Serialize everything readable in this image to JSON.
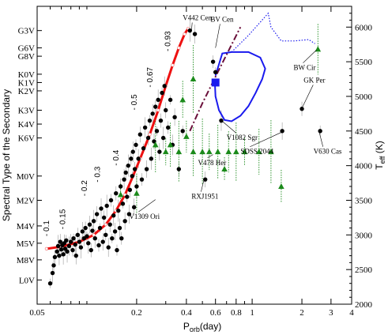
{
  "chart_data": {
    "type": "scatter",
    "x_axis": {
      "label": "P",
      "label_sub": "orb",
      "label_tail": "(day)",
      "scale": "log",
      "range": [
        0.05,
        4
      ],
      "ticks": [
        {
          "v": 0.05,
          "t": "0.05"
        },
        {
          "v": 0.2,
          "t": "0.2"
        },
        {
          "v": 0.4,
          "t": "0.4"
        },
        {
          "v": 0.6,
          "t": "0.6"
        },
        {
          "v": 0.8,
          "t": "0.8"
        },
        {
          "v": 1,
          "t": "1"
        },
        {
          "v": 2,
          "t": "2"
        },
        {
          "v": 3,
          "t": "3"
        },
        {
          "v": 4,
          "t": "4"
        }
      ],
      "minor": [
        0.06,
        0.07,
        0.08,
        0.09,
        0.1,
        0.3,
        0.5,
        0.7,
        0.9
      ]
    },
    "y_left": {
      "label": "Spectral Type of  the Secondary",
      "ticks": [
        {
          "v": 5950,
          "t": "G3V"
        },
        {
          "v": 5700,
          "t": "G6V"
        },
        {
          "v": 5580,
          "t": "G8V"
        },
        {
          "v": 5320,
          "t": "K0V"
        },
        {
          "v": 5200,
          "t": "K1V"
        },
        {
          "v": 5080,
          "t": "K2V"
        },
        {
          "v": 4800,
          "t": "K3V"
        },
        {
          "v": 4600,
          "t": "K4V"
        },
        {
          "v": 4400,
          "t": "K6V"
        },
        {
          "v": 3850,
          "t": "M0V"
        },
        {
          "v": 3500,
          "t": "M2V"
        },
        {
          "v": 3130,
          "t": "M4V"
        },
        {
          "v": 2880,
          "t": "M5V"
        },
        {
          "v": 2640,
          "t": "M8V"
        },
        {
          "v": 2350,
          "t": "L0V"
        }
      ]
    },
    "y_right": {
      "label": "T",
      "label_sub": "eff",
      "label_tail": " (K)",
      "range": [
        2000,
        6300
      ],
      "ticks": [
        2000,
        2500,
        3000,
        3500,
        4000,
        4500,
        5000,
        5500,
        6000
      ]
    },
    "series": [
      {
        "name": "",
        "kind": "points",
        "color": "#000000",
        "points": [
          [
            0.06,
            2300
          ],
          [
            0.062,
            2450
          ],
          [
            0.063,
            2560
          ],
          [
            0.064,
            2680
          ],
          [
            0.066,
            2760
          ],
          [
            0.067,
            2840
          ],
          [
            0.068,
            2700
          ],
          [
            0.069,
            2900
          ],
          [
            0.07,
            2790
          ],
          [
            0.071,
            2850
          ],
          [
            0.072,
            2720
          ],
          [
            0.073,
            2880
          ],
          [
            0.074,
            2800
          ],
          [
            0.075,
            2920
          ],
          [
            0.076,
            2760
          ],
          [
            0.078,
            2840
          ],
          [
            0.08,
            2900
          ],
          [
            0.082,
            2780
          ],
          [
            0.083,
            2950
          ],
          [
            0.085,
            2860
          ],
          [
            0.086,
            2700
          ],
          [
            0.088,
            3000
          ],
          [
            0.09,
            2900
          ],
          [
            0.092,
            2820
          ],
          [
            0.094,
            3050
          ],
          [
            0.096,
            2950
          ],
          [
            0.098,
            3100
          ],
          [
            0.1,
            2980
          ],
          [
            0.102,
            2880
          ],
          [
            0.104,
            3150
          ],
          [
            0.106,
            2780
          ],
          [
            0.108,
            3060
          ],
          [
            0.11,
            3200
          ],
          [
            0.112,
            2950
          ],
          [
            0.115,
            3300
          ],
          [
            0.118,
            2850
          ],
          [
            0.12,
            3100
          ],
          [
            0.122,
            3380
          ],
          [
            0.125,
            2900
          ],
          [
            0.127,
            3250
          ],
          [
            0.13,
            3000
          ],
          [
            0.132,
            3420
          ],
          [
            0.135,
            2820
          ],
          [
            0.138,
            3150
          ],
          [
            0.14,
            3500
          ],
          [
            0.142,
            2950
          ],
          [
            0.145,
            3280
          ],
          [
            0.148,
            3050
          ],
          [
            0.15,
            3600
          ],
          [
            0.152,
            2780
          ],
          [
            0.155,
            3350
          ],
          [
            0.158,
            3100
          ],
          [
            0.16,
            3700
          ],
          [
            0.162,
            2950
          ],
          [
            0.165,
            3450
          ],
          [
            0.168,
            3800
          ],
          [
            0.17,
            3200
          ],
          [
            0.172,
            3900
          ],
          [
            0.175,
            3550
          ],
          [
            0.178,
            4000
          ],
          [
            0.18,
            3300
          ],
          [
            0.182,
            3650
          ],
          [
            0.185,
            4100
          ],
          [
            0.188,
            3850
          ],
          [
            0.19,
            4200
          ],
          [
            0.193,
            3400
          ],
          [
            0.195,
            3950
          ],
          [
            0.198,
            4300
          ],
          [
            0.2,
            3700
          ],
          [
            0.205,
            4100
          ],
          [
            0.21,
            4450
          ],
          [
            0.215,
            3800
          ],
          [
            0.22,
            4250
          ],
          [
            0.225,
            4550
          ],
          [
            0.23,
            3950
          ],
          [
            0.235,
            4400
          ],
          [
            0.24,
            4650
          ],
          [
            0.245,
            4100
          ],
          [
            0.25,
            4750
          ],
          [
            0.255,
            4350
          ],
          [
            0.26,
            4850
          ],
          [
            0.265,
            4500
          ],
          [
            0.27,
            4950
          ],
          [
            0.275,
            4200
          ],
          [
            0.28,
            4650
          ],
          [
            0.285,
            5050
          ],
          [
            0.29,
            4400
          ],
          [
            0.295,
            5150
          ],
          [
            0.3,
            4800
          ],
          [
            0.31,
            4550
          ],
          [
            0.32,
            4950
          ],
          [
            0.33,
            4300
          ],
          [
            0.34,
            4700
          ],
          [
            0.36,
            3950
          ],
          [
            0.38,
            4500
          ],
          [
            0.42,
            5950
          ],
          [
            0.45,
            5900
          ],
          [
            0.52,
            3800
          ],
          [
            0.58,
            5500
          ],
          [
            0.6,
            5350
          ],
          [
            0.65,
            4650
          ],
          [
            1.52,
            4500
          ],
          [
            2.0,
            4820
          ],
          [
            2.58,
            4500
          ]
        ]
      },
      {
        "name": "",
        "kind": "triangles",
        "color": "#1a8a1a",
        "points": [
          [
            0.16,
            3580
          ],
          [
            0.2,
            3600
          ],
          [
            0.26,
            4300
          ],
          [
            0.3,
            4200
          ],
          [
            0.32,
            4300
          ],
          [
            0.36,
            4200
          ],
          [
            0.4,
            4420
          ],
          [
            0.44,
            4200
          ],
          [
            0.5,
            4200
          ],
          [
            0.55,
            4200
          ],
          [
            0.62,
            4200
          ],
          [
            0.68,
            3950
          ],
          [
            0.72,
            4200
          ],
          [
            0.8,
            4200
          ],
          [
            0.9,
            4200
          ],
          [
            1.1,
            4200
          ],
          [
            1.3,
            4200
          ],
          [
            1.5,
            3700
          ],
          [
            2.5,
            5680
          ],
          [
            0.44,
            5250
          ],
          [
            0.38,
            4950
          ]
        ]
      },
      {
        "name": "",
        "kind": "red-track",
        "color": "#ee1111",
        "points": [
          [
            0.057,
            2800
          ],
          [
            0.07,
            2830
          ],
          [
            0.09,
            2900
          ],
          [
            0.11,
            3000
          ],
          [
            0.13,
            3150
          ],
          [
            0.15,
            3350
          ],
          [
            0.17,
            3580
          ],
          [
            0.19,
            3850
          ],
          [
            0.21,
            4100
          ],
          [
            0.24,
            4450
          ],
          [
            0.27,
            4800
          ],
          [
            0.3,
            5150
          ],
          [
            0.33,
            5450
          ],
          [
            0.36,
            5700
          ],
          [
            0.39,
            5900
          ],
          [
            0.41,
            5980
          ]
        ]
      },
      {
        "name": "",
        "kind": "blue-track",
        "color": "#1a1aee",
        "points": [
          [
            0.595,
            5200
          ],
          [
            0.6,
            5000
          ],
          [
            0.63,
            4800
          ],
          [
            0.68,
            4660
          ],
          [
            0.75,
            4640
          ],
          [
            0.85,
            4720
          ],
          [
            0.95,
            4860
          ],
          [
            1.05,
            5050
          ],
          [
            1.15,
            5250
          ],
          [
            1.2,
            5400
          ],
          [
            1.12,
            5560
          ],
          [
            0.95,
            5640
          ],
          [
            0.75,
            5640
          ],
          [
            0.66,
            5620
          ],
          [
            0.6,
            5300
          ]
        ]
      },
      {
        "name": "",
        "kind": "blue-dotted",
        "color": "#1a1aee",
        "points": [
          [
            0.75,
            5640
          ],
          [
            0.95,
            5880
          ],
          [
            1.1,
            6050
          ],
          [
            1.25,
            6200
          ],
          [
            1.3,
            6000
          ],
          [
            1.5,
            5800
          ],
          [
            1.8,
            5800
          ],
          [
            2.2,
            5820
          ],
          [
            2.4,
            5760
          ]
        ]
      },
      {
        "name": "",
        "kind": "dashdot",
        "color": "#6a0f3a",
        "points": [
          [
            0.42,
            4500
          ],
          [
            0.5,
            4900
          ],
          [
            0.65,
            5450
          ],
          [
            0.85,
            6000
          ]
        ]
      },
      {
        "name": "",
        "kind": "marker",
        "color": "#1a1aee",
        "points": [
          [
            0.6,
            5200
          ]
        ]
      }
    ],
    "track_labels": [
      {
        "text": "- 0.1",
        "x": 0.059,
        "y": 2980
      },
      {
        "text": "- 0.15",
        "x": 0.074,
        "y": 3080
      },
      {
        "text": "- 0.2",
        "x": 0.1,
        "y": 3560
      },
      {
        "text": "- 0.3",
        "x": 0.12,
        "y": 3760
      },
      {
        "text": "- 0.4",
        "x": 0.155,
        "y": 4000
      },
      {
        "text": "- 0.5",
        "x": 0.2,
        "y": 4800
      },
      {
        "text": "- 0.67",
        "x": 0.25,
        "y": 5130
      },
      {
        "text": "- 0.93",
        "x": 0.32,
        "y": 5650
      }
    ],
    "annotations": [
      {
        "text": "V442 Cen",
        "x": 0.38,
        "y": 6100,
        "ax": 0.43,
        "ay": 5960
      },
      {
        "text": "BV Cen",
        "x": 0.56,
        "y": 6080,
        "ax": 0.6,
        "ay": 5700
      },
      {
        "text": "BW Cir",
        "x": 1.78,
        "y": 5380,
        "ax": 2.45,
        "ay": 5670
      },
      {
        "text": "GK Per",
        "x": 2.05,
        "y": 5200,
        "ax": 2.02,
        "ay": 4850
      },
      {
        "text": "V1082 Sgr",
        "x": 0.7,
        "y": 4370,
        "ax": 0.66,
        "ay": 4640
      },
      {
        "text": "V478 Her",
        "x": 0.47,
        "y": 4010,
        "ax": 0.58,
        "ay": 4160
      },
      {
        "text": "SDSS 2044",
        "x": 0.85,
        "y": 4170,
        "ax": 1.5,
        "ay": 4480
      },
      {
        "text": "V630 Cas",
        "x": 2.35,
        "y": 4170,
        "ax": 2.55,
        "ay": 4480
      },
      {
        "text": "RXJ1951",
        "x": 0.43,
        "y": 3520,
        "ax": 0.51,
        "ay": 3790
      },
      {
        "text": "V1309 Ori",
        "x": 0.18,
        "y": 3230,
        "ax": 0.26,
        "ay": 3510
      }
    ]
  }
}
